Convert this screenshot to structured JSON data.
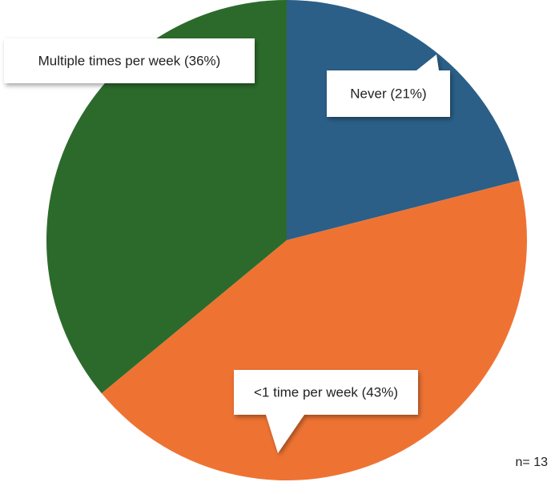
{
  "chart_data": {
    "type": "pie",
    "values": [
      21,
      43,
      36
    ],
    "value_labels": [
      "Never (21%)",
      "<1 time per week (43%)",
      "Multiple times per week (36%)"
    ],
    "colors": [
      "#2b5f87",
      "#ee7333",
      "#2c6a2c"
    ],
    "note": "n= 13"
  }
}
